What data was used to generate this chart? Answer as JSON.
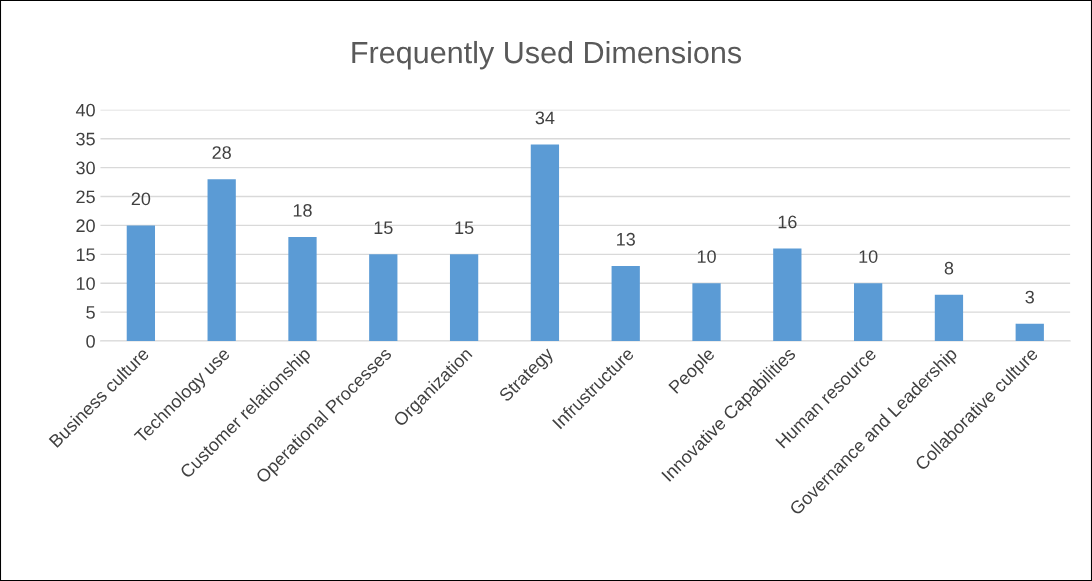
{
  "chart_data": {
    "type": "bar",
    "title": "Frequently Used Dimensions",
    "categories": [
      "Business culture",
      "Technology use",
      "Customer relationship",
      "Operational Processes",
      "Organization",
      "Strategy",
      "Infrustructure",
      "People",
      "Innovative Capabilities",
      "Human resource",
      "Governance and Leadership",
      "Collaborative culture"
    ],
    "values": [
      20,
      28,
      18,
      15,
      15,
      34,
      13,
      10,
      16,
      10,
      8,
      3
    ],
    "color": "#5b9bd5",
    "ylim": [
      0,
      40
    ],
    "yticks": [
      0,
      5,
      10,
      15,
      20,
      25,
      30,
      35,
      40
    ],
    "grid": "y",
    "data_labels": true
  }
}
